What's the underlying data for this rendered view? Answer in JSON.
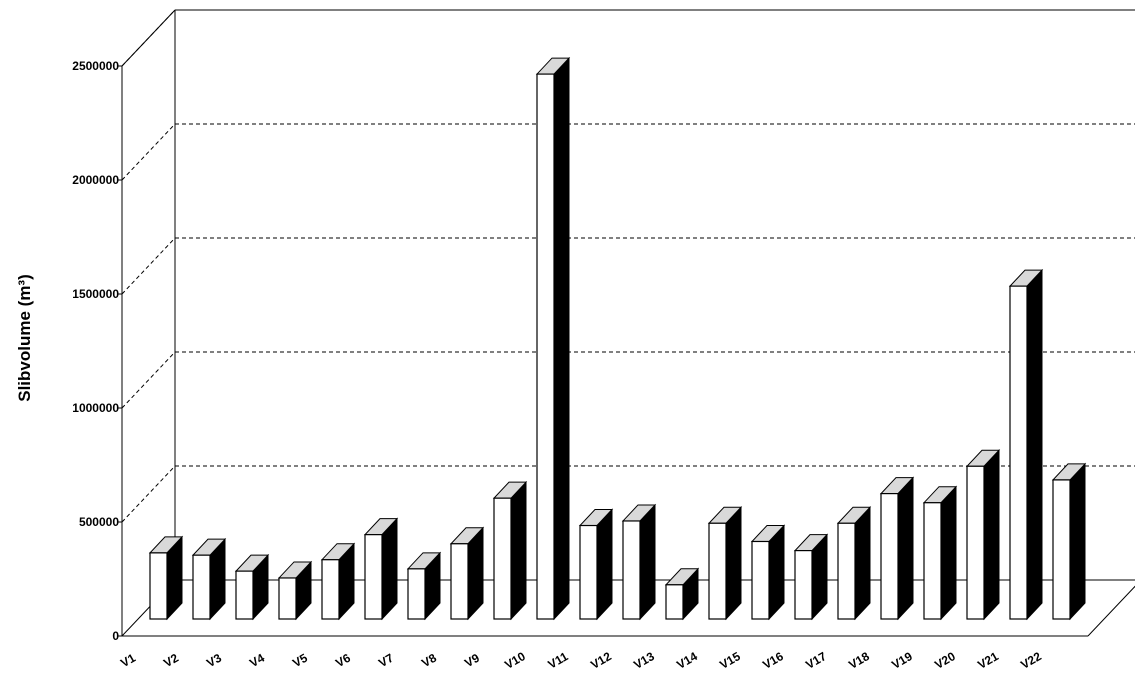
{
  "chart_data": {
    "type": "bar",
    "style": "3d",
    "title": "",
    "xlabel": "",
    "ylabel": "Slibvolume (m³)",
    "ylim": [
      0,
      2500000
    ],
    "yticks": [
      "0",
      "500000",
      "1000000",
      "1500000",
      "2000000",
      "2500000"
    ],
    "grid": true,
    "categories": [
      "V1",
      "V2",
      "V3",
      "V4",
      "V5",
      "V6",
      "V7",
      "V8",
      "V9",
      "V10",
      "V11",
      "V12",
      "V13",
      "V14",
      "V15",
      "V16",
      "V17",
      "V18",
      "V19",
      "V20",
      "V21",
      "V22"
    ],
    "values": [
      290000,
      280000,
      210000,
      180000,
      260000,
      370000,
      220000,
      330000,
      530000,
      2390000,
      410000,
      430000,
      150000,
      420000,
      340000,
      300000,
      420000,
      550000,
      510000,
      670000,
      1460000,
      610000
    ],
    "colors": {
      "front": "#ffffff",
      "side": "#000000",
      "top": "#d9d9d9",
      "grid": "#000000"
    }
  }
}
